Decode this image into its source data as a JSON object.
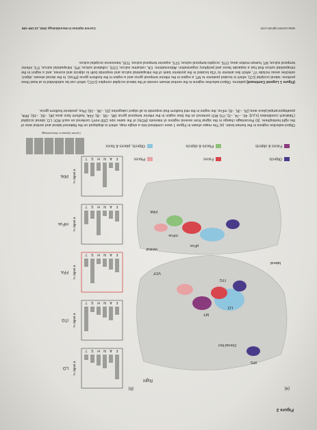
{
  "figure_label": "Figure 2",
  "panel_a": "(a)",
  "panel_b": "(b)",
  "hemisphere": "Right",
  "map_labels": [
    "IPS",
    "Dorsal foci",
    "LO",
    "MT",
    "ITG",
    "pFus",
    "mFus",
    "VOT",
    "PPA",
    "lateral",
    "ventral"
  ],
  "legend": [
    {
      "name": "Objects",
      "color": "#4a3a8a"
    },
    {
      "name": "Faces",
      "color": "#d8454c"
    },
    {
      "name": "Places",
      "color": "#e8a2a4"
    },
    {
      "name": "Faces & objects",
      "color": "#8a3b7e"
    },
    {
      "name": "Places & objects",
      "color": "#8cc27a"
    },
    {
      "name": "Objects, places & faces",
      "color": "#8ec5df"
    }
  ],
  "rois": [
    "LO",
    "ITG",
    "FFA",
    "mFus",
    "PPA"
  ],
  "bar_categories": [
    "F",
    "A",
    "N",
    "H",
    "S",
    "T"
  ],
  "y_label": "% signal Δ",
  "credit": "Current Opinion in Neurobiology",
  "caption": "Object-selective regions in the human brain. (a) The maps shown in Figure 1 were combined into a single map, which is displayed on the flattened lateral and ventral view of the right hemisphere. (b) Percentage change in the signal from several regions of interests (ROIs) of the same size (200 mm³) centered on each ROI: LO, lateral occipital (Talairach coordinates [x,y,z]: 40, −74, −2); ITG ROI centered on the blue region in the inferior temporal gyrus (48, −58, −8); FFA, fusiform face area (40, −50, −16); PPA, parahippocampal place area (25, −35, −8); mFus, the region in the mid fusiform that responds to all object categories (33, −38, −16); Pfus, posterior fusiform gyrus.",
  "caption_continued_label": "(Figure 1 Legend Continued)",
  "caption_continued": "patterns. Object-selective regions in the ventral stream consist of the lateral occipital complex (LOC), which can be subdivided to at least three portions: lateral occipital (LO), which is located posterior to MT; a region in the inferior temporal gyrus and a region in the fusiform gyrus (PFus). In the dorsal stream, object-selective areas include V7, which lies anterior to V3a located in the posterior bank of the intraparietal sulcus and responds both to objects and scenes, and a region in the intraparietal sulcus that has a separate faces and periphery organization. Abbreviations: CA, calcarine sulcus; COS, collateral sulcus; IPS, intraparietal sulcus; ITS, inferior temporal sulcus; MT, human motion area; OTS, occipito-temporal sulcus; STS, superior temporal sulcus; TOS, transverse occipital sulcus.",
  "footer_url": "www.current-opinion.com",
  "footer_journal": "Current Opinion in Neurobiology 2002, 12:159–166"
}
